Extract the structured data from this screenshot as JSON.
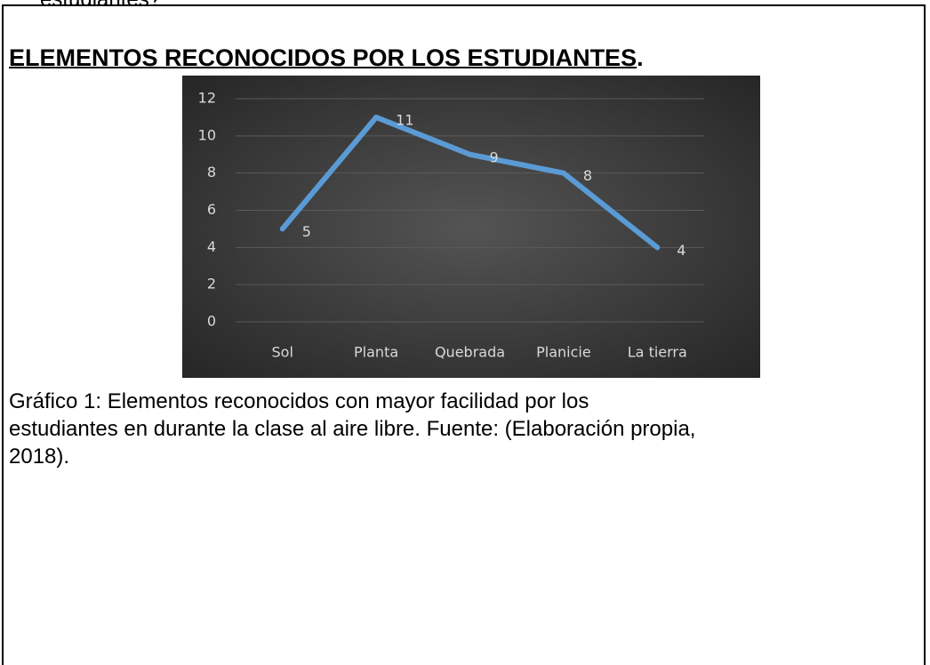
{
  "previous_text": "estudiantes?",
  "heading": "ELEMENTOS RECONOCIDOS POR LOS ESTUDIANTES",
  "heading_end": ".",
  "chart_data": {
    "type": "line",
    "categories": [
      "Sol",
      "Planta",
      "Quebrada",
      "Planicie",
      "La tierra"
    ],
    "values": [
      5,
      11,
      9,
      8,
      4
    ],
    "color": "#5b9bd5",
    "ylim": [
      0,
      12
    ],
    "yticks": [
      0,
      2,
      4,
      6,
      8,
      10,
      12
    ],
    "grid": true
  },
  "caption_lines": [
    "Gráfico 1: Elementos reconocidos con mayor facilidad por los",
    "estudiantes en durante la clase al aire libre. Fuente: (Elaboración propia,",
    "2018)."
  ]
}
